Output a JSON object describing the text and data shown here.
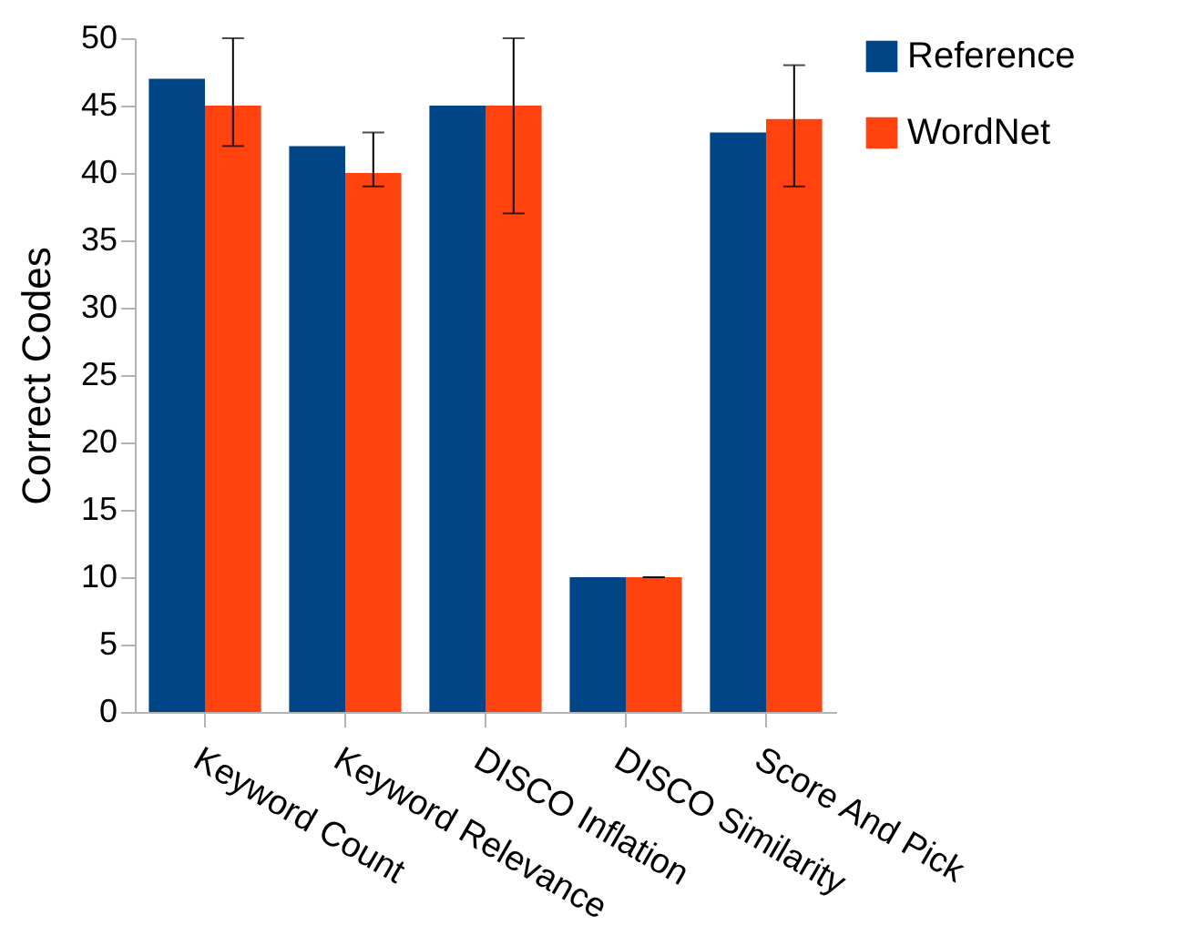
{
  "chart_data": {
    "type": "bar",
    "ylabel": "Correct Codes",
    "categories": [
      "Keyword Count",
      "Keyword Relevance",
      "DISCO Inflation",
      "DISCO Similarity",
      "Score And Pick"
    ],
    "series": [
      {
        "name": "Reference",
        "color": "#004586",
        "values": [
          47,
          42,
          45,
          10,
          43
        ]
      },
      {
        "name": "WordNet",
        "color": "#ff420e",
        "values": [
          45,
          40,
          45,
          10,
          44
        ],
        "errors": [
          [
            42,
            50
          ],
          [
            39,
            43
          ],
          [
            37,
            50
          ],
          [
            10,
            10
          ],
          [
            39,
            48
          ]
        ]
      }
    ],
    "ylim": [
      0,
      50
    ],
    "yticks": [
      0,
      5,
      10,
      15,
      20,
      25,
      30,
      35,
      40,
      45,
      50
    ],
    "grid": false,
    "legend": "right"
  }
}
